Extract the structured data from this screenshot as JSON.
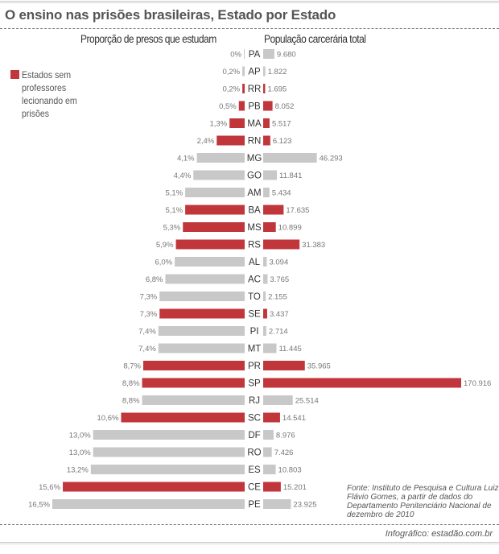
{
  "title": "O ensino nas prisões brasileiras, Estado por Estado",
  "colors": {
    "no_teachers": "#c0363b",
    "default": "#c8c8c8"
  },
  "legend": {
    "label": "Estados sem professores lecionando em prisões"
  },
  "source": "Fonte: Instituto de Pesquisa e Cultura Luiz Flávio Gomes, a partir de dados do Departamento Penitenciário Nacional de dezembro de 2010",
  "credit": "Infográfico: estadão.com.br",
  "chart_data": {
    "type": "bar",
    "title": "O ensino nas prisões brasileiras, Estado por Estado",
    "left_series_title": "Proporção de presos que estudam",
    "right_series_title": "População carcerária total",
    "legend": [
      {
        "name": "Estados sem professores lecionando em prisões",
        "color": "#c0363b"
      }
    ],
    "legend_placement": "top-left",
    "grid": false,
    "left_xlim": [
      0,
      16.5
    ],
    "right_xlim": [
      0,
      170916
    ],
    "categories": [
      "PA",
      "AP",
      "RR",
      "PB",
      "MA",
      "RN",
      "MG",
      "GO",
      "AM",
      "BA",
      "MS",
      "RS",
      "AL",
      "AC",
      "TO",
      "SE",
      "PI",
      "MT",
      "PR",
      "SP",
      "RJ",
      "SC",
      "DF",
      "RO",
      "ES",
      "CE",
      "PE"
    ],
    "series": [
      {
        "name": "Proporção de presos que estudam",
        "unit": "%",
        "values": [
          0,
          0.2,
          0.2,
          0.5,
          1.3,
          2.4,
          4.1,
          4.4,
          5.1,
          5.1,
          5.3,
          5.9,
          6.0,
          6.8,
          7.3,
          7.3,
          7.4,
          7.4,
          8.7,
          8.8,
          8.8,
          10.6,
          13.0,
          13.0,
          13.2,
          15.6,
          16.5
        ],
        "labels": [
          "0%",
          "0,2%",
          "0,2%",
          "0,5%",
          "1,3%",
          "2,4%",
          "4,1%",
          "4,4%",
          "5,1%",
          "5,1%",
          "5,3%",
          "5,9%",
          "6,0%",
          "6,8%",
          "7,3%",
          "7,3%",
          "7,4%",
          "7,4%",
          "8,7%",
          "8,8%",
          "8,8%",
          "10,6%",
          "13,0%",
          "13,0%",
          "13,2%",
          "15,6%",
          "16,5%"
        ]
      },
      {
        "name": "População carcerária total",
        "values": [
          9680,
          1822,
          1695,
          8052,
          5517,
          6123,
          46293,
          11841,
          5434,
          17635,
          10899,
          31383,
          3094,
          3765,
          2155,
          3437,
          2714,
          11445,
          35965,
          170916,
          25514,
          14541,
          8976,
          7426,
          10803,
          15201,
          23925
        ],
        "labels": [
          "9.680",
          "1.822",
          "1.695",
          "8.052",
          "5.517",
          "6.123",
          "46.293",
          "11.841",
          "5.434",
          "17.635",
          "10.899",
          "31.383",
          "3.094",
          "3.765",
          "2.155",
          "3.437",
          "2.714",
          "11.445",
          "35.965",
          "170.916",
          "25.514",
          "14.541",
          "8.976",
          "7.426",
          "10.803",
          "15.201",
          "23.925"
        ]
      }
    ],
    "no_teachers": [
      false,
      false,
      true,
      true,
      true,
      true,
      false,
      false,
      false,
      true,
      true,
      true,
      false,
      false,
      false,
      true,
      false,
      false,
      true,
      true,
      false,
      true,
      false,
      false,
      false,
      true,
      false
    ]
  }
}
